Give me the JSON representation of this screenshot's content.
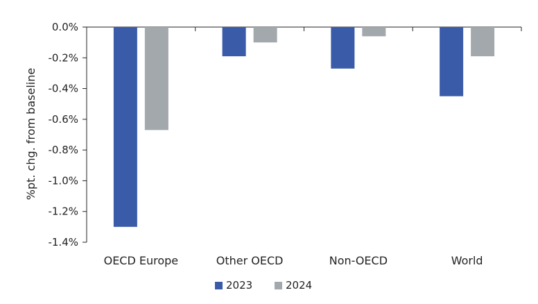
{
  "chart_data": {
    "type": "bar",
    "title": "",
    "xlabel": "",
    "ylabel": "%pt. chg. from baseline",
    "categories": [
      "OECD Europe",
      "Other OECD",
      "Non-OECD",
      "World"
    ],
    "series": [
      {
        "name": "2023",
        "color": "#3a5ba8",
        "values": [
          -1.3,
          -0.19,
          -0.27,
          -0.45
        ]
      },
      {
        "name": "2024",
        "color": "#a3a8ad",
        "values": [
          -0.67,
          -0.1,
          -0.06,
          -0.19
        ]
      }
    ],
    "ylim": [
      -1.4,
      0.0
    ],
    "yticks": [
      0.0,
      -0.2,
      -0.4,
      -0.6,
      -0.8,
      -1.0,
      -1.2,
      -1.4
    ],
    "ytick_labels": [
      "0.0%",
      "-0.2%",
      "-0.4%",
      "-0.6%",
      "-0.8%",
      "-1.0%",
      "-1.2%",
      "-1.4%"
    ],
    "legend_position": "bottom-center",
    "grid": false
  }
}
